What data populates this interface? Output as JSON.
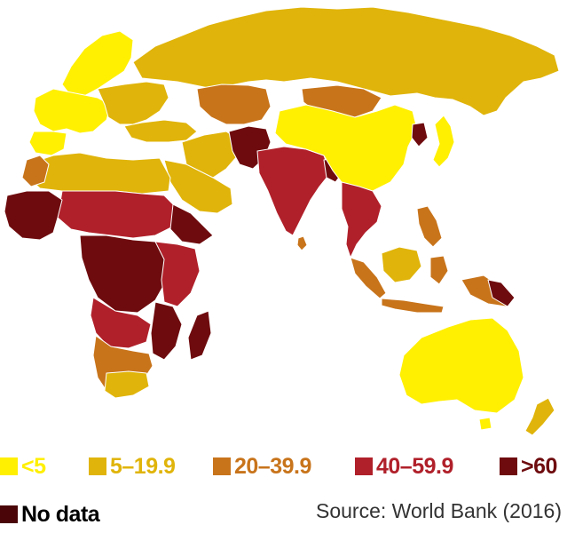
{
  "colors": {
    "lt5": "#ffef00",
    "c5_19": "#e0b40a",
    "c20_39": "#c8741b",
    "c40_59": "#b0202a",
    "gt60": "#6e0b0e",
    "nodata": "#4a0508",
    "border": "#ffffff"
  },
  "legend": [
    {
      "key": "lt5",
      "label": "<5",
      "color": "#ffef00"
    },
    {
      "key": "c5_19",
      "label": "5–19.9",
      "color": "#e0b40a"
    },
    {
      "key": "c20_39",
      "label": "20–39.9",
      "color": "#c8741b"
    },
    {
      "key": "c40_59",
      "label": "40–59.9",
      "color": "#b0202a"
    },
    {
      "key": "gt60",
      "label": ">60",
      "color": "#6e0b0e"
    }
  ],
  "nodata": {
    "label": "No data",
    "color": "#4a0508"
  },
  "source": "Source: World Bank (2016)"
}
